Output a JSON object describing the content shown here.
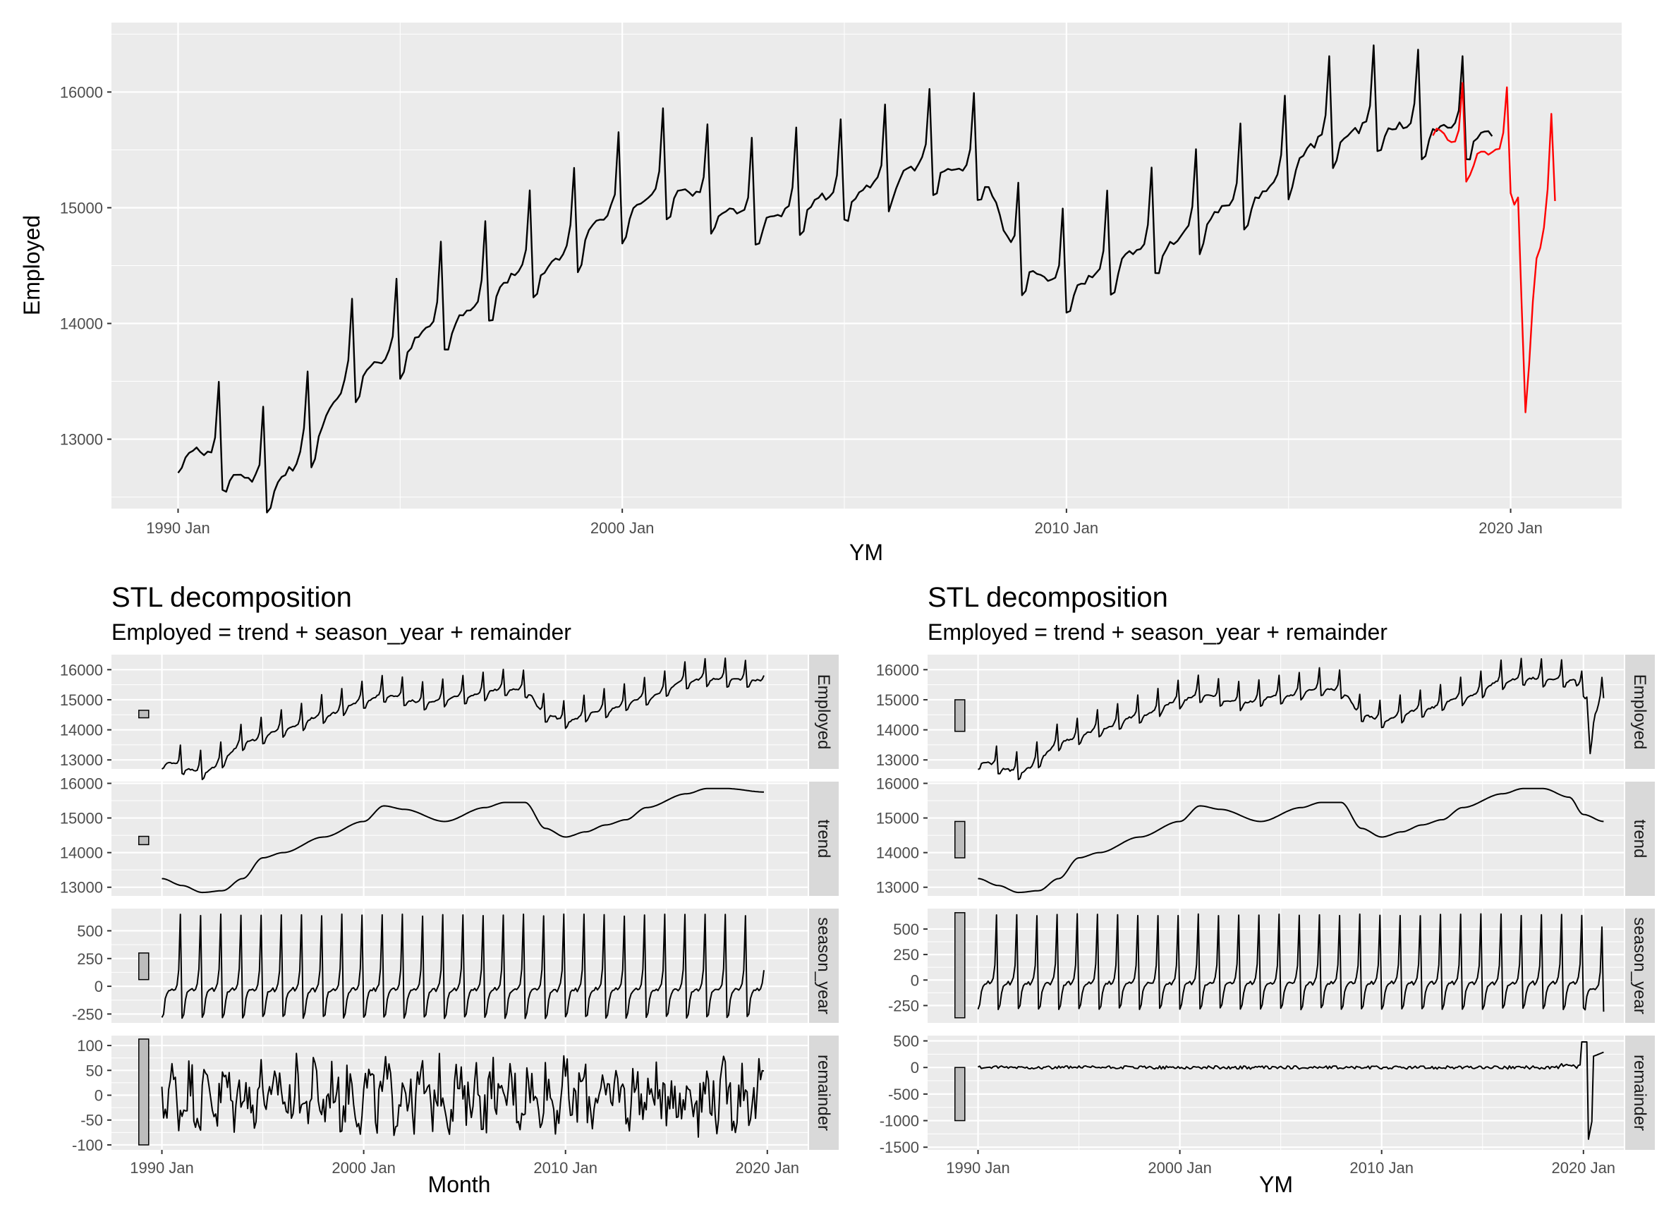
{
  "chart_data": [
    {
      "type": "line",
      "title": "",
      "xlabel": "YM",
      "ylabel": "Employed",
      "xlim": [
        1988.5,
        2022.5
      ],
      "ylim": [
        12400,
        16600
      ],
      "x_ticks": [
        {
          "value": 1990,
          "label": "1990 Jan"
        },
        {
          "value": 2000,
          "label": "2000 Jan"
        },
        {
          "value": 2010,
          "label": "2010 Jan"
        },
        {
          "value": 2020,
          "label": "2020 Jan"
        }
      ],
      "y_ticks": [
        13000,
        14000,
        15000,
        16000
      ],
      "grid": true,
      "series": [
        {
          "color": "#000000",
          "x_start": 1990.0,
          "x_end": 2019.58,
          "anchors": [
            [
              1990.0,
              12980
            ],
            [
              1992.0,
              12650
            ],
            [
              1994.5,
              13700
            ],
            [
              1996.0,
              14050
            ],
            [
              1998.0,
              14500
            ],
            [
              2000.0,
              15000
            ],
            [
              2001.0,
              15200
            ],
            [
              2003.0,
              14950
            ],
            [
              2005.0,
              15150
            ],
            [
              2007.0,
              15400
            ],
            [
              2008.0,
              15350
            ],
            [
              2009.0,
              14550
            ],
            [
              2010.0,
              14350
            ],
            [
              2012.0,
              14700
            ],
            [
              2014.0,
              15100
            ],
            [
              2016.0,
              15650
            ],
            [
              2017.0,
              15750
            ],
            [
              2018.0,
              15720
            ],
            [
              2019.58,
              15680
            ]
          ],
          "amp": 1,
          "seed": 11
        },
        {
          "color": "#ff0000",
          "x_start": 2018.25,
          "x_end": 2021.0,
          "anchors": [
            [
              2018.25,
              15700
            ],
            [
              2019.0,
              15500
            ],
            [
              2019.8,
              15500
            ],
            [
              2020.2,
              15200
            ],
            [
              2020.3,
              13200
            ],
            [
              2020.6,
              14600
            ],
            [
              2021.0,
              15300
            ]
          ],
          "amp": 0.9,
          "seed": 23
        }
      ]
    },
    {
      "type": "line",
      "title": "STL decomposition",
      "subtitle": "Employed = trend + season_year + remainder",
      "xlabel": "Month",
      "xlim": [
        1987.5,
        2022.0
      ],
      "x_ticks": [
        {
          "value": 1990,
          "label": "1990 Jan"
        },
        {
          "value": 2000,
          "label": "2000 Jan"
        },
        {
          "value": 2010,
          "label": "2010 Jan"
        },
        {
          "value": 2020,
          "label": "2020 Jan"
        }
      ],
      "x_start": 1990.0,
      "x_end": 2019.83,
      "panels": [
        {
          "name": "Employed",
          "ylim": [
            12700,
            16500
          ],
          "y_ticks": [
            13000,
            14000,
            15000,
            16000
          ],
          "bar": [
            14400,
            14650
          ],
          "kind": "employed",
          "amp": 1
        },
        {
          "name": "trend",
          "ylim": [
            12750,
            16050
          ],
          "y_ticks": [
            13000,
            14000,
            15000,
            16000
          ],
          "bar": [
            14230,
            14470
          ],
          "kind": "trend",
          "anchors": [
            [
              1990.0,
              13250
            ],
            [
              1991.0,
              13050
            ],
            [
              1992.0,
              12850
            ],
            [
              1993.0,
              12900
            ],
            [
              1994.0,
              13250
            ],
            [
              1995.0,
              13850
            ],
            [
              1996.0,
              14000
            ],
            [
              1998.0,
              14450
            ],
            [
              2000.0,
              14900
            ],
            [
              2001.0,
              15350
            ],
            [
              2002.0,
              15250
            ],
            [
              2004.0,
              14900
            ],
            [
              2006.0,
              15300
            ],
            [
              2007.0,
              15450
            ],
            [
              2008.0,
              15450
            ],
            [
              2009.0,
              14700
            ],
            [
              2010.0,
              14450
            ],
            [
              2011.0,
              14600
            ],
            [
              2012.0,
              14800
            ],
            [
              2013.0,
              14950
            ],
            [
              2014.0,
              15300
            ],
            [
              2016.0,
              15700
            ],
            [
              2017.0,
              15850
            ],
            [
              2018.0,
              15850
            ],
            [
              2019.83,
              15750
            ]
          ]
        },
        {
          "name": "season_year",
          "ylim": [
            -330,
            700
          ],
          "y_ticks": [
            -250,
            0,
            250,
            500
          ],
          "tick_labels": [
            "-250",
            "0",
            "250",
            "500"
          ],
          "bar": [
            60,
            300
          ],
          "kind": "season"
        },
        {
          "name": "remainder",
          "ylim": [
            -110,
            120
          ],
          "y_ticks": [
            -100,
            -50,
            0,
            50,
            100
          ],
          "tick_labels": [
            "-100",
            "-50",
            "0",
            "50",
            "100"
          ],
          "bar": [
            -100,
            113
          ],
          "kind": "remainder"
        }
      ]
    },
    {
      "type": "line",
      "title": "STL decomposition",
      "subtitle": "Employed = trend + season_year + remainder",
      "xlabel": "YM",
      "xlim": [
        1987.5,
        2022.0
      ],
      "x_ticks": [
        {
          "value": 1990,
          "label": "1990 Jan"
        },
        {
          "value": 2000,
          "label": "2000 Jan"
        },
        {
          "value": 2010,
          "label": "2010 Jan"
        },
        {
          "value": 2020,
          "label": "2020 Jan"
        }
      ],
      "x_start": 1990.0,
      "x_end": 2021.0,
      "panels": [
        {
          "name": "Employed",
          "ylim": [
            12700,
            16500
          ],
          "y_ticks": [
            13000,
            14000,
            15000,
            16000
          ],
          "bar": [
            13950,
            15000
          ],
          "kind": "employed_full",
          "amp": 1
        },
        {
          "name": "trend",
          "ylim": [
            12750,
            16050
          ],
          "y_ticks": [
            13000,
            14000,
            15000,
            16000
          ],
          "bar": [
            13850,
            14900
          ],
          "kind": "trend",
          "anchors": [
            [
              1990.0,
              13250
            ],
            [
              1991.0,
              13050
            ],
            [
              1992.0,
              12850
            ],
            [
              1993.0,
              12900
            ],
            [
              1994.0,
              13250
            ],
            [
              1995.0,
              13850
            ],
            [
              1996.0,
              14000
            ],
            [
              1998.0,
              14450
            ],
            [
              2000.0,
              14900
            ],
            [
              2001.0,
              15350
            ],
            [
              2002.0,
              15250
            ],
            [
              2004.0,
              14900
            ],
            [
              2006.0,
              15300
            ],
            [
              2007.0,
              15450
            ],
            [
              2008.0,
              15450
            ],
            [
              2009.0,
              14700
            ],
            [
              2010.0,
              14450
            ],
            [
              2011.0,
              14600
            ],
            [
              2012.0,
              14800
            ],
            [
              2013.0,
              14950
            ],
            [
              2014.0,
              15300
            ],
            [
              2016.0,
              15700
            ],
            [
              2017.0,
              15850
            ],
            [
              2018.0,
              15850
            ],
            [
              2019.3,
              15600
            ],
            [
              2020.0,
              15100
            ],
            [
              2021.0,
              14900
            ]
          ]
        },
        {
          "name": "season_year",
          "ylim": [
            -420,
            700
          ],
          "y_ticks": [
            -250,
            0,
            250,
            500
          ],
          "tick_labels": [
            "-250",
            "0",
            "250",
            "500"
          ],
          "bar": [
            -370,
            660
          ],
          "kind": "season_full"
        },
        {
          "name": "remainder",
          "ylim": [
            -1550,
            600
          ],
          "y_ticks": [
            -1500,
            -1000,
            -500,
            0,
            500
          ],
          "tick_labels": [
            "-1500",
            "-1000",
            "-500",
            "0",
            "500"
          ],
          "bar": [
            -1000,
            0
          ],
          "kind": "remainder_full"
        }
      ]
    }
  ]
}
